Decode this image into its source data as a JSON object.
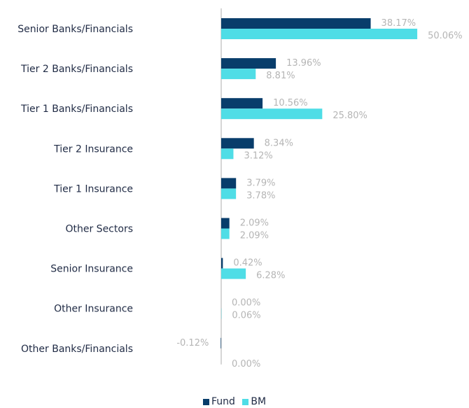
{
  "chart_data": {
    "type": "bar",
    "orientation": "horizontal",
    "categories": [
      "Senior Banks/Financials",
      "Tier 2 Banks/Financials",
      "Tier 1 Banks/Financials",
      "Tier 2 Insurance",
      "Tier 1 Insurance",
      "Other Sectors",
      "Senior Insurance",
      "Other Insurance",
      "Other Banks/Financials"
    ],
    "series": [
      {
        "name": "Fund",
        "color": "#083d6b",
        "values": [
          38.17,
          13.96,
          10.56,
          8.34,
          3.79,
          2.09,
          0.42,
          0.0,
          -0.12
        ],
        "labels": [
          "38.17%",
          "13.96%",
          "10.56%",
          "8.34%",
          "3.79%",
          "2.09%",
          "0.42%",
          "0.00%",
          "-0.12%"
        ]
      },
      {
        "name": "BM",
        "color": "#4fdde6",
        "values": [
          50.06,
          8.81,
          25.8,
          3.12,
          3.78,
          2.09,
          6.28,
          0.06,
          0.0
        ],
        "labels": [
          "50.06%",
          "8.81%",
          "25.80%",
          "3.12%",
          "3.78%",
          "2.09%",
          "6.28%",
          "0.06%",
          "0.00%"
        ]
      }
    ],
    "legend_position": "bottom-center",
    "axis_line_color": "#c8c8c8"
  }
}
